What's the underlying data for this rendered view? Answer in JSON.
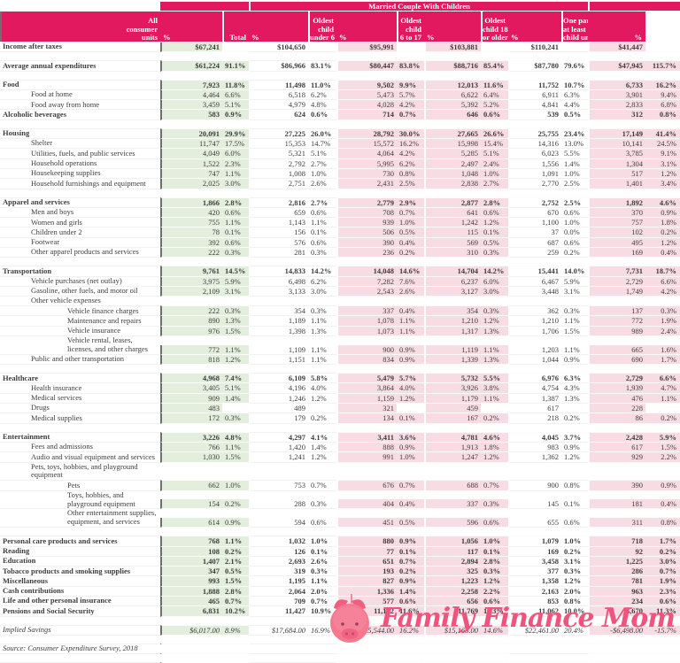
{
  "group_title": "Married Couple  With Children",
  "colors": {
    "header_pink": "#e3195f",
    "light_pink": "#f8dce3",
    "light_green": "#e3eedd",
    "logo_pink": "#f0547c",
    "text": "#3d3d3d"
  },
  "header": {
    "columns": [
      {
        "lines": [
          "All",
          "consumer",
          "units"
        ],
        "pct": "%"
      },
      {
        "lines": [
          "Total"
        ],
        "pct": "%"
      },
      {
        "lines": [
          "Oldest",
          "child",
          "under 6"
        ],
        "pct": "%"
      },
      {
        "lines": [
          "Oldest",
          "child",
          "6 to 17"
        ],
        "pct": "%"
      },
      {
        "lines": [
          "Oldest",
          "child 18",
          "or older"
        ],
        "pct": "%"
      },
      {
        "lines": [
          "One parent,",
          "at least one",
          "child under 18"
        ],
        "pct": "%"
      }
    ]
  },
  "rows": [
    {
      "label": "Income after taxes",
      "level": 0,
      "bold": true,
      "values": [
        "$67,241",
        "",
        "$104,650",
        "",
        "$95,991",
        "",
        "$103,881",
        "",
        "$110,241",
        "",
        "$41,447",
        ""
      ]
    },
    {
      "spacer": true
    },
    {
      "label": "Average annual expenditures",
      "level": 0,
      "bold": true,
      "values": [
        "$61,224",
        "91.1%",
        "$86,966",
        "83.1%",
        "$80,447",
        "83.8%",
        "$88,716",
        "85.4%",
        "$87,780",
        "79.6%",
        "$47,945",
        "115.7%"
      ]
    },
    {
      "spacer": true
    },
    {
      "label": "Food",
      "level": 0,
      "bold": true,
      "values": [
        "7,923",
        "11.8%",
        "11,498",
        "11.0%",
        "9,502",
        "9.9%",
        "12,013",
        "11.6%",
        "11,752",
        "10.7%",
        "6,733",
        "16.2%"
      ]
    },
    {
      "label": "Food at home",
      "level": 1,
      "values": [
        "4,464",
        "6.6%",
        "6,518",
        "6.2%",
        "5,473",
        "5.7%",
        "6,622",
        "6.4%",
        "6,911",
        "6.3%",
        "3,901",
        "9.4%"
      ]
    },
    {
      "label": "Food away from home",
      "level": 1,
      "values": [
        "3,459",
        "5.1%",
        "4,979",
        "4.8%",
        "4,028",
        "4.2%",
        "5,392",
        "5.2%",
        "4,841",
        "4.4%",
        "2,833",
        "6.8%"
      ]
    },
    {
      "label": "Alcoholic beverages",
      "level": 0,
      "bold": true,
      "values": [
        "583",
        "0.9%",
        "624",
        "0.6%",
        "714",
        "0.7%",
        "646",
        "0.6%",
        "539",
        "0.5%",
        "312",
        "0.8%"
      ]
    },
    {
      "spacer": true
    },
    {
      "label": "Housing",
      "level": 0,
      "bold": true,
      "values": [
        "20,091",
        "29.9%",
        "27,225",
        "26.0%",
        "28,792",
        "30.0%",
        "27,665",
        "26.6%",
        "25,755",
        "23.4%",
        "17,149",
        "41.4%"
      ]
    },
    {
      "label": "Shelter",
      "level": 1,
      "values": [
        "11,747",
        "17.5%",
        "15,353",
        "14.7%",
        "15,572",
        "16.2%",
        "15,998",
        "15.4%",
        "14,316",
        "13.0%",
        "10,141",
        "24.5%"
      ]
    },
    {
      "label": "Utilities, fuels, and public services",
      "level": 1,
      "values": [
        "4,049",
        "6.0%",
        "5,321",
        "5.1%",
        "4,064",
        "4.2%",
        "5,285",
        "5.1%",
        "6,023",
        "5.5%",
        "3,785",
        "9.1%"
      ]
    },
    {
      "label": "Household operations",
      "level": 1,
      "values": [
        "1,522",
        "2.3%",
        "2,792",
        "2.7%",
        "5,995",
        "6.2%",
        "2,497",
        "2.4%",
        "1,556",
        "1.4%",
        "1,304",
        "3.1%"
      ]
    },
    {
      "label": "Housekeeping supplies",
      "level": 1,
      "values": [
        "747",
        "1.1%",
        "1,008",
        "1.0%",
        "730",
        "0.8%",
        "1,048",
        "1.0%",
        "1,091",
        "1.0%",
        "517",
        "1.2%"
      ]
    },
    {
      "label": "Household furnishings and equipment",
      "level": 1,
      "values": [
        "2,025",
        "3.0%",
        "2,751",
        "2.6%",
        "2,431",
        "2.5%",
        "2,838",
        "2.7%",
        "2,770",
        "2.5%",
        "1,401",
        "3.4%"
      ]
    },
    {
      "spacer": true
    },
    {
      "label": "Apparel and services",
      "level": 0,
      "bold": true,
      "values": [
        "1,866",
        "2.8%",
        "2,816",
        "2.7%",
        "2,779",
        "2.9%",
        "2,877",
        "2.8%",
        "2,752",
        "2.5%",
        "1,892",
        "4.6%"
      ]
    },
    {
      "label": "Men and boys",
      "level": 1,
      "values": [
        "420",
        "0.6%",
        "659",
        "0.6%",
        "708",
        "0.7%",
        "641",
        "0.6%",
        "670",
        "0.6%",
        "370",
        "0.9%"
      ]
    },
    {
      "label": "Women and girls",
      "level": 1,
      "values": [
        "755",
        "1.1%",
        "1,143",
        "1.1%",
        "939",
        "1.0%",
        "1,242",
        "1.2%",
        "1,100",
        "1.0%",
        "757",
        "1.8%"
      ]
    },
    {
      "label": "Children under 2",
      "level": 1,
      "values": [
        "78",
        "0.1%",
        "156",
        "0.1%",
        "506",
        "0.5%",
        "115",
        "0.1%",
        "37",
        "0.0%",
        "102",
        "0.2%"
      ]
    },
    {
      "label": "Footwear",
      "level": 1,
      "values": [
        "392",
        "0.6%",
        "576",
        "0.6%",
        "390",
        "0.4%",
        "569",
        "0.5%",
        "687",
        "0.6%",
        "495",
        "1.2%"
      ]
    },
    {
      "label": "Other apparel products and services",
      "level": 1,
      "values": [
        "222",
        "0.3%",
        "281",
        "0.3%",
        "236",
        "0.2%",
        "310",
        "0.3%",
        "259",
        "0.2%",
        "169",
        "0.4%"
      ]
    },
    {
      "spacer": true
    },
    {
      "label": "Transportation",
      "level": 0,
      "bold": true,
      "values": [
        "9,761",
        "14.5%",
        "14,833",
        "14.2%",
        "14,048",
        "14.6%",
        "14,704",
        "14.2%",
        "15,441",
        "14.0%",
        "7,731",
        "18.7%"
      ]
    },
    {
      "label": "Vehicle purchases (net outlay)",
      "level": 1,
      "values": [
        "3,975",
        "5.9%",
        "6,498",
        "6.2%",
        "7,282",
        "7.6%",
        "6,237",
        "6.0%",
        "6,467",
        "5.9%",
        "2,729",
        "6.6%"
      ]
    },
    {
      "label": "Gasoline, other fuels, and motor oil",
      "level": 1,
      "values": [
        "2,109",
        "3.1%",
        "3,133",
        "3.0%",
        "2,543",
        "2.6%",
        "3,127",
        "3.0%",
        "3,448",
        "3.1%",
        "1,749",
        "4.2%"
      ]
    },
    {
      "label": "Other vehicle expenses",
      "level": 1,
      "values": [
        "",
        "",
        "",
        "",
        "",
        "",
        "",
        "",
        "",
        "",
        "",
        ""
      ]
    },
    {
      "label": "Vehicle finance charges",
      "level": 2,
      "values": [
        "222",
        "0.3%",
        "354",
        "0.3%",
        "337",
        "0.4%",
        "354",
        "0.3%",
        "362",
        "0.3%",
        "137",
        "0.3%"
      ]
    },
    {
      "label": "Maintenance and repairs",
      "level": 2,
      "values": [
        "890",
        "1.3%",
        "1,189",
        "1.1%",
        "1,078",
        "1.1%",
        "1,210",
        "1.2%",
        "1,210",
        "1.1%",
        "772",
        "1.9%"
      ]
    },
    {
      "label": "Vehicle insurance",
      "level": 2,
      "values": [
        "976",
        "1.5%",
        "1,398",
        "1.3%",
        "1,073",
        "1.1%",
        "1,317",
        "1.3%",
        "1,706",
        "1.5%",
        "989",
        "2.4%"
      ]
    },
    {
      "label": "Vehicle rental, leases, licenses, and other charges",
      "level": 2,
      "tall": true,
      "values": [
        "772",
        "1.1%",
        "1,109",
        "1.1%",
        "900",
        "0.9%",
        "1,119",
        "1.1%",
        "1,203",
        "1.1%",
        "665",
        "1.6%"
      ]
    },
    {
      "label": "Public and other transportation",
      "level": 1,
      "values": [
        "818",
        "1.2%",
        "1,151",
        "1.1%",
        "834",
        "0.9%",
        "1,339",
        "1.3%",
        "1,044",
        "0.9%",
        "690",
        "1.7%"
      ]
    },
    {
      "spacer": true
    },
    {
      "label": "Healthcare",
      "level": 0,
      "bold": true,
      "values": [
        "4,968",
        "7.4%",
        "6,109",
        "5.8%",
        "5,479",
        "5.7%",
        "5,732",
        "5.5%",
        "6,976",
        "6.3%",
        "2,729",
        "6.6%"
      ]
    },
    {
      "label": "Health insurance",
      "level": 1,
      "values": [
        "3,405",
        "5.1%",
        "4,196",
        "4.0%",
        "3,864",
        "4.0%",
        "3,926",
        "3.8%",
        "4,754",
        "4.3%",
        "1,939",
        "4.7%"
      ]
    },
    {
      "label": "Medical services",
      "level": 1,
      "values": [
        "909",
        "1.4%",
        "1,246",
        "1.2%",
        "1,159",
        "1.2%",
        "1,179",
        "1.1%",
        "1,387",
        "1.3%",
        "476",
        "1.1%"
      ]
    },
    {
      "label": "Drugs",
      "level": 1,
      "values": [
        "483",
        "",
        "489",
        "",
        "321",
        "",
        "459",
        "",
        "617",
        "",
        "228",
        ""
      ]
    },
    {
      "label": "Medical supplies",
      "level": 1,
      "values": [
        "172",
        "0.3%",
        "179",
        "0.2%",
        "134",
        "0.1%",
        "167",
        "0.2%",
        "218",
        "0.2%",
        "86",
        "0.2%"
      ]
    },
    {
      "spacer": true
    },
    {
      "label": "Entertainment",
      "level": 0,
      "bold": true,
      "values": [
        "3,226",
        "4.8%",
        "4,297",
        "4.1%",
        "3,411",
        "3.6%",
        "4,781",
        "4.6%",
        "4,045",
        "3.7%",
        "2,428",
        "5.9%"
      ]
    },
    {
      "label": "Fees and admissions",
      "level": 1,
      "values": [
        "766",
        "1.1%",
        "1,420",
        "1.4%",
        "888",
        "0.9%",
        "1,913",
        "1.8%",
        "983",
        "0.9%",
        "617",
        "1.5%"
      ]
    },
    {
      "label": "Audio and visual equipment and services",
      "level": 1,
      "values": [
        "1,030",
        "1.5%",
        "1,241",
        "1.2%",
        "991",
        "1.0%",
        "1,247",
        "1.2%",
        "1,362",
        "1.2%",
        "929",
        "2.2%"
      ]
    },
    {
      "label": "Pets, toys, hobbies, and playground equipment",
      "level": 1,
      "values": [
        "",
        "",
        "",
        "",
        "",
        "",
        "",
        "",
        "",
        "",
        "",
        ""
      ]
    },
    {
      "label": "Pets",
      "level": 2,
      "values": [
        "662",
        "1.0%",
        "753",
        "0.7%",
        "676",
        "0.7%",
        "688",
        "0.7%",
        "900",
        "0.8%",
        "390",
        "0.9%"
      ]
    },
    {
      "label": "Toys, hobbies, and playground equipment",
      "level": 2,
      "values": [
        "154",
        "0.2%",
        "288",
        "0.3%",
        "404",
        "0.4%",
        "337",
        "0.3%",
        "145",
        "0.1%",
        "181",
        "0.4%"
      ]
    },
    {
      "label": "Other entertainment supplies, equipment, and services",
      "level": 2,
      "tall": true,
      "values": [
        "614",
        "0.9%",
        "594",
        "0.6%",
        "451",
        "0.5%",
        "596",
        "0.6%",
        "655",
        "0.6%",
        "311",
        "0.8%"
      ]
    },
    {
      "spacer": true
    },
    {
      "label": "Personal care products and services",
      "level": 0,
      "bold": true,
      "values": [
        "768",
        "1.1%",
        "1,032",
        "1.0%",
        "880",
        "0.9%",
        "1,056",
        "1.0%",
        "1,079",
        "1.0%",
        "718",
        "1.7%"
      ]
    },
    {
      "label": "Reading",
      "level": 0,
      "bold": true,
      "values": [
        "108",
        "0.2%",
        "126",
        "0.1%",
        "77",
        "0.1%",
        "117",
        "0.1%",
        "169",
        "0.2%",
        "92",
        "0.2%"
      ]
    },
    {
      "label": "Education",
      "level": 0,
      "bold": true,
      "values": [
        "1,407",
        "2.1%",
        "2,693",
        "2.6%",
        "651",
        "0.7%",
        "2,894",
        "2.8%",
        "3,458",
        "3.1%",
        "1,225",
        "3.0%"
      ]
    },
    {
      "label": "Tobacco products and smoking supplies",
      "level": 0,
      "bold": true,
      "values": [
        "347",
        "0.5%",
        "319",
        "0.3%",
        "193",
        "0.2%",
        "325",
        "0.3%",
        "377",
        "0.3%",
        "286",
        "0.7%"
      ]
    },
    {
      "label": "Miscellaneous",
      "level": 0,
      "bold": true,
      "values": [
        "993",
        "1.5%",
        "1,195",
        "1.1%",
        "827",
        "0.9%",
        "1,223",
        "1.2%",
        "1,358",
        "1.2%",
        "781",
        "1.9%"
      ]
    },
    {
      "label": "Cash contributions",
      "level": 0,
      "bold": true,
      "values": [
        "1,888",
        "2.8%",
        "2,064",
        "2.0%",
        "1,336",
        "1.4%",
        "2,258",
        "2.2%",
        "2,163",
        "2.0%",
        "963",
        "2.3%"
      ]
    },
    {
      "label": "Life and other personal insurance",
      "level": 0,
      "bold": true,
      "values": [
        "465",
        "0.7%",
        "709",
        "0.7%",
        "577",
        "0.6%",
        "656",
        "0.6%",
        "853",
        "0.8%",
        "234",
        "0.6%"
      ]
    },
    {
      "label": "Pensions and Social Security",
      "level": 0,
      "bold": true,
      "values": [
        "6,831",
        "10.2%",
        "11,427",
        "10.9%",
        "11,182",
        "11.6%",
        "11,769",
        "11.3%",
        "11,062",
        "10.0%",
        "4,670",
        "11.3%"
      ]
    },
    {
      "spacer": true
    },
    {
      "label": "Implied Savings",
      "level": 0,
      "italic": true,
      "values": [
        "$6,017.00",
        "8.9%",
        "$17,684.00",
        "16.9%",
        "$15,544.00",
        "16.2%",
        "$15,165.00",
        "14.6%",
        "$22,461.00",
        "20.4%",
        "-$6,498.00",
        "-15.7%"
      ]
    },
    {
      "spacer": true
    },
    {
      "label": "Source: Consumer Expenditure Survey, 2018",
      "level": 0,
      "italic": true,
      "values": [
        "",
        "",
        "",
        "",
        "",
        "",
        "",
        "",
        "",
        "",
        "",
        ""
      ]
    },
    {
      "spacer": true
    }
  ],
  "logo": {
    "text": "Family Finance Mom",
    "icon": "piggy-bank-icon"
  }
}
